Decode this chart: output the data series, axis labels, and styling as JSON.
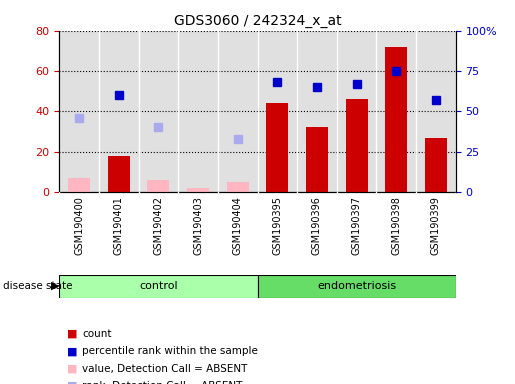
{
  "title": "GDS3060 / 242324_x_at",
  "samples": [
    "GSM190400",
    "GSM190401",
    "GSM190402",
    "GSM190403",
    "GSM190404",
    "GSM190395",
    "GSM190396",
    "GSM190397",
    "GSM190398",
    "GSM190399"
  ],
  "bar_values": [
    null,
    18,
    null,
    null,
    null,
    44,
    32,
    46,
    72,
    27
  ],
  "bar_absent": [
    7,
    null,
    6,
    2,
    5,
    null,
    null,
    null,
    null,
    null
  ],
  "dot_blue": [
    null,
    60,
    null,
    null,
    null,
    68,
    65,
    67,
    75,
    57
  ],
  "dot_absent_rank": [
    46,
    null,
    40,
    null,
    33,
    null,
    null,
    null,
    null,
    null
  ],
  "ylim_left": [
    0,
    80
  ],
  "ylim_right": [
    0,
    100
  ],
  "yticks_left": [
    0,
    20,
    40,
    60,
    80
  ],
  "yticks_right": [
    0,
    25,
    50,
    75,
    100
  ],
  "yticklabels_right": [
    "0",
    "25",
    "50",
    "75",
    "100%"
  ],
  "bar_color": "#CC0000",
  "bar_absent_color": "#FFB6C1",
  "dot_blue_color": "#0000CC",
  "dot_absent_color": "#AAAAEE",
  "group_control_color": "#AAFFAA",
  "group_endo_color": "#66DD66",
  "bg_color": "#E0E0E0",
  "legend_items": [
    "count",
    "percentile rank within the sample",
    "value, Detection Call = ABSENT",
    "rank, Detection Call = ABSENT"
  ],
  "legend_colors": [
    "#CC0000",
    "#0000CC",
    "#FFB6C1",
    "#AAAAEE"
  ]
}
